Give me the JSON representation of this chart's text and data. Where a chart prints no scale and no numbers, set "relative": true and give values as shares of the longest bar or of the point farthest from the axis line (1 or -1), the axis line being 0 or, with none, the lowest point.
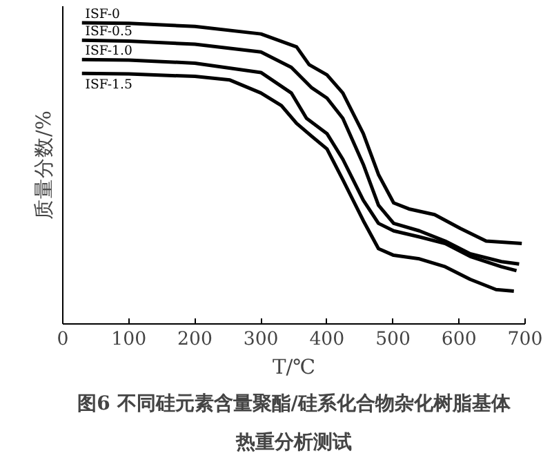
{
  "chart_data": {
    "type": "line",
    "title": "图6 不同硅元素含量聚酯/硅系化合物杂化树脂基体热重分析测试",
    "xlabel": "T/℃",
    "ylabel": "质量分数/%",
    "relative": true,
    "xlim": [
      0,
      700
    ],
    "xticks": [
      0,
      100,
      200,
      300,
      400,
      500,
      600,
      700
    ],
    "grid": false,
    "marker": "none",
    "line_style": "solid",
    "series": [
      {
        "name": "ISF-0",
        "color": "#000000",
        "x": [
          29,
          100,
          200,
          300,
          354,
          373,
          400,
          424,
          455,
          478,
          501,
          524,
          563,
          602,
          641,
          695
        ],
        "values": [
          1.0,
          0.998,
          0.988,
          0.963,
          0.92,
          0.861,
          0.827,
          0.767,
          0.632,
          0.496,
          0.402,
          0.382,
          0.363,
          0.317,
          0.275,
          0.267
        ]
      },
      {
        "name": "ISF-0.5",
        "color": "#000000",
        "x": [
          29,
          100,
          200,
          300,
          346,
          377,
          400,
          424,
          455,
          478,
          501,
          540,
          579,
          617,
          664,
          691
        ],
        "values": [
          0.942,
          0.939,
          0.929,
          0.903,
          0.852,
          0.784,
          0.75,
          0.683,
          0.53,
          0.394,
          0.334,
          0.309,
          0.275,
          0.233,
          0.207,
          0.199
        ]
      },
      {
        "name": "ISF-1.0",
        "color": "#000000",
        "x": [
          29,
          100,
          200,
          300,
          346,
          369,
          400,
          424,
          455,
          478,
          501,
          540,
          579,
          617,
          664,
          687
        ],
        "values": [
          0.878,
          0.876,
          0.866,
          0.835,
          0.767,
          0.683,
          0.632,
          0.547,
          0.411,
          0.334,
          0.309,
          0.289,
          0.267,
          0.224,
          0.19,
          0.177
        ]
      },
      {
        "name": "ISF-1.5",
        "color": "#000000",
        "x": [
          29,
          100,
          200,
          253,
          300,
          331,
          354,
          377,
          400,
          424,
          455,
          478,
          501,
          540,
          579,
          617,
          656,
          683
        ],
        "values": [
          0.832,
          0.83,
          0.822,
          0.81,
          0.767,
          0.725,
          0.666,
          0.623,
          0.581,
          0.479,
          0.343,
          0.25,
          0.228,
          0.216,
          0.19,
          0.148,
          0.114,
          0.109
        ]
      }
    ]
  }
}
